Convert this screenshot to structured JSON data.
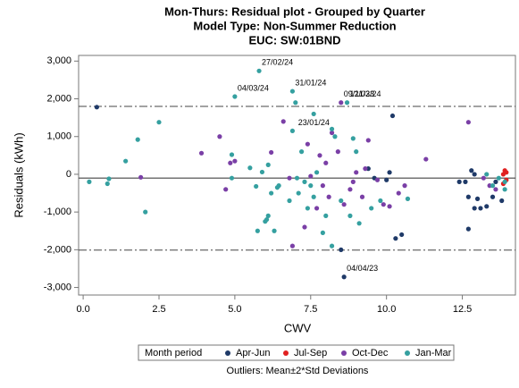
{
  "chart_data": {
    "type": "scatter",
    "title": "Mon-Thurs: Residual plot - Grouped by Quarter",
    "subtitle": "Model Type: Non-Summer Reduction",
    "subtitle2": "EUC: SW:01BND",
    "x_label": "CWV",
    "y_label": "Residuals (kWh)",
    "legend_title": "Month period",
    "footnote": "Outliers: Mean±2*Std Deviations",
    "xlim": [
      -0.15,
      14.25
    ],
    "ylim": [
      -3200,
      3150
    ],
    "xticks": [
      {
        "value": 0,
        "label": "0.0"
      },
      {
        "value": 2.5,
        "label": "2.5"
      },
      {
        "value": 5,
        "label": "5.0"
      },
      {
        "value": 7.5,
        "label": "7.5"
      },
      {
        "value": 10,
        "label": "10.0"
      },
      {
        "value": 12.5,
        "label": "12.5"
      }
    ],
    "yticks": [
      {
        "value": 3000,
        "label": "3,000"
      },
      {
        "value": 2000,
        "label": "2,000"
      },
      {
        "value": 1000,
        "label": "1,000"
      },
      0,
      {
        "value": -1000,
        "label": "-1,000"
      },
      {
        "value": -2000,
        "label": "-2,000"
      },
      {
        "value": -3000,
        "label": "-3,000"
      }
    ],
    "reference_lines": [
      {
        "value": 1800,
        "style": "dashdot"
      },
      {
        "value": -100,
        "style": "solid"
      },
      {
        "value": -2010,
        "style": "dashdot"
      }
    ],
    "series": [
      {
        "name": "Apr-Jun",
        "color": "#1f3a68",
        "x": [
          0.45,
          8.5,
          8.6,
          9.4,
          9.6,
          10.0,
          10.2,
          10.3,
          10.5,
          12.4,
          12.6,
          12.7,
          12.8,
          12.9,
          13.0,
          13.1,
          13.3,
          13.5,
          13.6,
          13.8,
          12.7,
          10.1,
          12.9
        ],
        "values": [
          1780,
          -2000,
          -2720,
          150,
          -100,
          -150,
          1550,
          -1700,
          -1600,
          -200,
          -200,
          -600,
          100,
          -900,
          -650,
          -900,
          -850,
          -600,
          -200,
          -700,
          -1450,
          50,
          0
        ]
      },
      {
        "name": "Jul-Sep",
        "color": "#e02020",
        "x": [
          13.85,
          13.9,
          13.95,
          13.85,
          13.95
        ],
        "values": [
          0,
          100,
          -150,
          -250,
          50
        ]
      },
      {
        "name": "Oct-Dec",
        "color": "#7a3fa6",
        "x": [
          1.9,
          3.9,
          4.5,
          4.7,
          4.85,
          5.0,
          6.2,
          6.6,
          6.8,
          6.9,
          7.3,
          7.4,
          7.5,
          7.7,
          7.8,
          7.9,
          8.0,
          8.1,
          8.2,
          8.4,
          8.5,
          8.6,
          8.8,
          8.9,
          9.0,
          9.2,
          9.4,
          9.7,
          9.9,
          10.1,
          10.4,
          10.6,
          11.3,
          12.7,
          13.2,
          13.4,
          13.6,
          9.3
        ],
        "values": [
          -80,
          560,
          1000,
          -400,
          300,
          350,
          580,
          1400,
          -100,
          -1900,
          -1400,
          800,
          -50,
          -900,
          500,
          -300,
          300,
          -600,
          1100,
          600,
          1900,
          -800,
          -400,
          -200,
          50,
          -600,
          900,
          -150,
          -800,
          -850,
          -500,
          -300,
          400,
          1380,
          -100,
          -300,
          -400,
          150
        ]
      },
      {
        "name": "Jan-Mar",
        "color": "#35a0a0",
        "x": [
          0.2,
          0.8,
          0.85,
          1.4,
          1.8,
          2.05,
          2.5,
          4.9,
          4.9,
          5.5,
          5.7,
          5.75,
          5.8,
          5.9,
          6.0,
          6.05,
          6.1,
          6.2,
          6.3,
          6.4,
          6.45,
          5.0,
          6.8,
          6.9,
          6.9,
          7.0,
          7.05,
          7.1,
          7.2,
          7.3,
          7.4,
          7.5,
          7.6,
          7.6,
          7.9,
          8.0,
          8.2,
          8.2,
          8.3,
          8.5,
          8.7,
          8.8,
          8.9,
          9.0,
          9.1,
          9.5,
          9.8,
          10.7,
          13.3,
          13.5,
          13.7,
          13.9,
          13.9,
          6.1,
          7.7
        ],
        "values": [
          -200,
          -250,
          -120,
          350,
          920,
          -1000,
          1380,
          520,
          -100,
          170,
          -320,
          -1500,
          2740,
          60,
          -1250,
          -1200,
          -1100,
          -500,
          -1500,
          -350,
          -300,
          2060,
          -700,
          1150,
          2200,
          1900,
          -100,
          -500,
          600,
          -200,
          -900,
          -300,
          1600,
          -600,
          -1550,
          -1100,
          1200,
          -1900,
          1000,
          -700,
          1900,
          -1100,
          950,
          600,
          -1300,
          -900,
          -700,
          -650,
          0,
          -300,
          -100,
          -200,
          -400,
          250,
          50
        ]
      }
    ],
    "annotations": [
      {
        "text": "27/02/24",
        "x": 5.8,
        "y": 2740,
        "color": "#35a0a0"
      },
      {
        "text": "04/03/24",
        "x": 5.0,
        "y": 2060,
        "color": "#35a0a0"
      },
      {
        "text": "31/01/24",
        "x": 6.9,
        "y": 2200,
        "color": "#35a0a0"
      },
      {
        "text": "12/03/24",
        "x": 8.7,
        "y": 1900,
        "color": "#35a0a0"
      },
      {
        "text": "23/01/24",
        "x": 7.0,
        "y": 1150,
        "color": "#35a0a0"
      },
      {
        "text": "09/11/23",
        "x": 8.5,
        "y": 1900,
        "color": "#7a3fa6"
      },
      {
        "text": "04/04/23",
        "x": 8.6,
        "y": -2720,
        "color": "#1f3a68"
      }
    ]
  }
}
